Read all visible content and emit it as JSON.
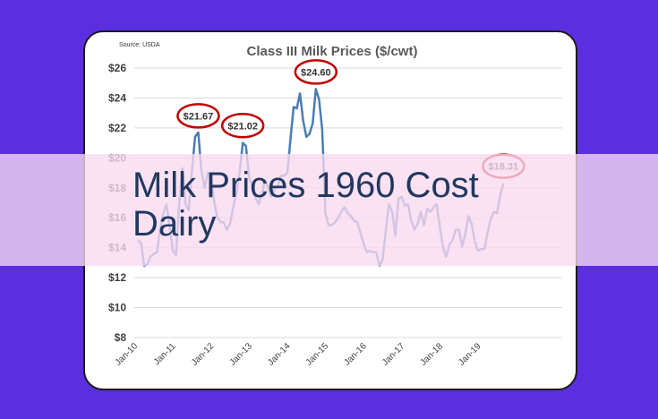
{
  "headline": "Milk Prices 1960 Cost Dairy",
  "chart_data": {
    "type": "line",
    "title": "Class III Milk Prices ($/cwt)",
    "source": "Source: USDA",
    "xlabel": "",
    "ylabel": "",
    "ylim": [
      8,
      26
    ],
    "yticks": [
      8,
      10,
      12,
      14,
      16,
      18,
      20,
      22,
      24,
      26
    ],
    "ytick_labels": [
      "$8",
      "$10",
      "$12",
      "$14",
      "$16",
      "$18",
      "$20",
      "$22",
      "$24",
      "$26"
    ],
    "xtick_labels": [
      "Jan-10",
      "Jan-11",
      "Jan-12",
      "Jan-13",
      "Jan-14",
      "Jan-15",
      "Jan-16",
      "Jan-17",
      "Jan-18",
      "Jan-19"
    ],
    "grid": true,
    "series": [
      {
        "color": "#4a7db5",
        "x": [
          "2010-01",
          "2010-02",
          "2010-03",
          "2010-04",
          "2010-05",
          "2010-06",
          "2010-07",
          "2010-08",
          "2010-09",
          "2010-10",
          "2010-11",
          "2010-12",
          "2011-01",
          "2011-02",
          "2011-03",
          "2011-04",
          "2011-05",
          "2011-06",
          "2011-07",
          "2011-08",
          "2011-09",
          "2011-10",
          "2011-11",
          "2011-12",
          "2012-01",
          "2012-02",
          "2012-03",
          "2012-04",
          "2012-05",
          "2012-06",
          "2012-07",
          "2012-08",
          "2012-09",
          "2012-10",
          "2012-11",
          "2012-12",
          "2013-01",
          "2013-02",
          "2013-03",
          "2013-04",
          "2013-05",
          "2013-06",
          "2013-07",
          "2013-08",
          "2013-09",
          "2013-10",
          "2013-11",
          "2013-12",
          "2014-01",
          "2014-02",
          "2014-03",
          "2014-04",
          "2014-05",
          "2014-06",
          "2014-07",
          "2014-08",
          "2014-09",
          "2014-10",
          "2014-11",
          "2014-12",
          "2015-01",
          "2015-02",
          "2015-03",
          "2015-04",
          "2015-05",
          "2015-06",
          "2015-07",
          "2015-08",
          "2015-09",
          "2015-10",
          "2015-11",
          "2015-12",
          "2016-01",
          "2016-02",
          "2016-03",
          "2016-04",
          "2016-05",
          "2016-06",
          "2016-07",
          "2016-08",
          "2016-09",
          "2016-10",
          "2016-11",
          "2016-12",
          "2017-01",
          "2017-02",
          "2017-03",
          "2017-04",
          "2017-05",
          "2017-06",
          "2017-07",
          "2017-08",
          "2017-09",
          "2017-10",
          "2017-11",
          "2017-12",
          "2018-01",
          "2018-02",
          "2018-03",
          "2018-04",
          "2018-05",
          "2018-06",
          "2018-07",
          "2018-08",
          "2018-09",
          "2018-10",
          "2018-11",
          "2018-12",
          "2019-01",
          "2019-02",
          "2019-03",
          "2019-04",
          "2019-05",
          "2019-06",
          "2019-07",
          "2019-08"
        ],
        "values": [
          14.5,
          14.3,
          12.8,
          12.9,
          13.4,
          13.6,
          13.7,
          15.2,
          16.3,
          16.9,
          15.4,
          13.8,
          13.5,
          17.0,
          19.3,
          16.9,
          16.5,
          19.1,
          21.4,
          21.7,
          19.1,
          18.0,
          19.0,
          18.8,
          17.1,
          16.0,
          15.7,
          15.7,
          15.2,
          15.6,
          16.7,
          17.7,
          19.0,
          21.0,
          20.8,
          18.7,
          18.1,
          17.3,
          16.9,
          17.6,
          18.5,
          18.0,
          17.4,
          17.9,
          18.1,
          18.8,
          18.8,
          19.0,
          21.2,
          23.4,
          23.3,
          24.3,
          22.5,
          21.4,
          21.6,
          22.3,
          24.6,
          23.9,
          21.9,
          16.3,
          15.5,
          15.5,
          15.7,
          16.0,
          16.4,
          16.7,
          16.3,
          16.1,
          15.8,
          15.7,
          15.0,
          14.3,
          13.7,
          13.8,
          13.7,
          13.7,
          12.8,
          13.2,
          15.2,
          16.9,
          16.4,
          14.8,
          17.3,
          17.4,
          16.8,
          16.9,
          15.8,
          15.2,
          15.6,
          16.4,
          15.5,
          16.6,
          16.4,
          16.7,
          16.9,
          15.4,
          14.0,
          13.4,
          14.2,
          14.5,
          15.2,
          15.2,
          14.1,
          14.9,
          16.1,
          15.6,
          14.4,
          13.8,
          13.9,
          13.9,
          15.0,
          15.9,
          16.4,
          16.3,
          17.5,
          18.3
        ]
      }
    ],
    "annotations": [
      {
        "label": "$21.67",
        "x": "2011-08",
        "value": 21.67
      },
      {
        "label": "$21.02",
        "x": "2012-10",
        "value": 21.02
      },
      {
        "label": "$24.60",
        "x": "2014-09",
        "value": 24.6
      },
      {
        "label": "$18.31",
        "x": "2019-08",
        "value": 18.31
      }
    ],
    "annotation_color": "#c00000"
  }
}
